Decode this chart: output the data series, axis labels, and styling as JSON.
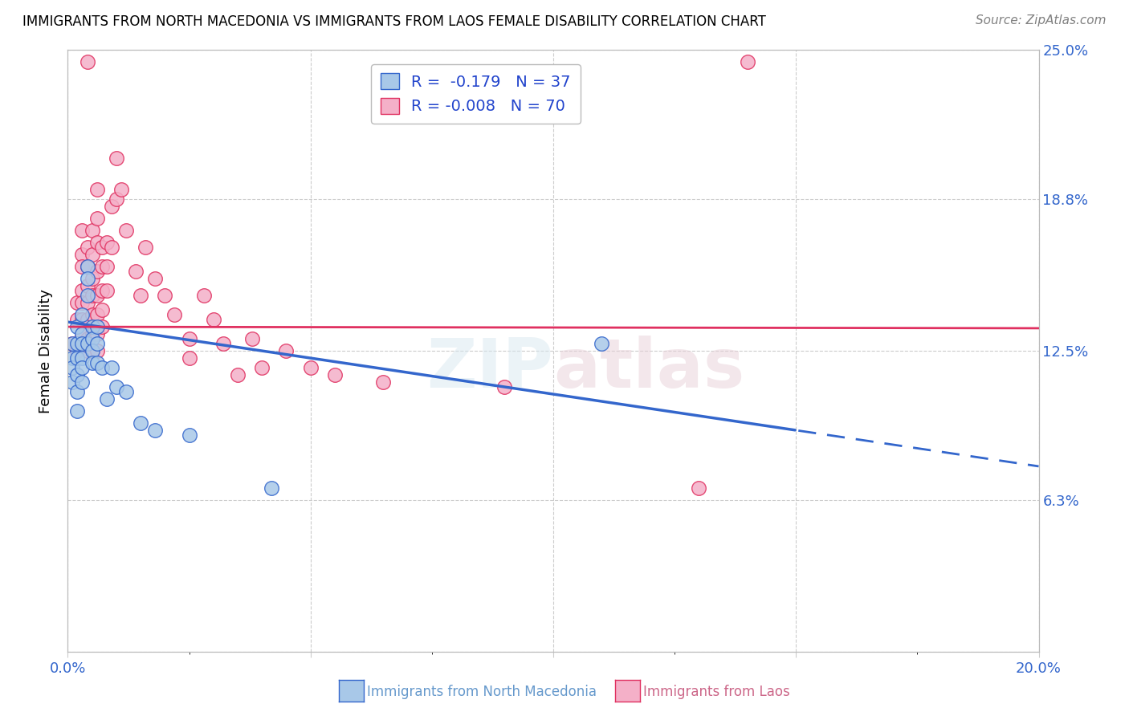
{
  "title": "IMMIGRANTS FROM NORTH MACEDONIA VS IMMIGRANTS FROM LAOS FEMALE DISABILITY CORRELATION CHART",
  "source": "Source: ZipAtlas.com",
  "ylabel": "Female Disability",
  "x_min": 0.0,
  "x_max": 0.2,
  "y_min": 0.0,
  "y_max": 0.25,
  "y_ticks": [
    0.0,
    0.063,
    0.125,
    0.188,
    0.25
  ],
  "y_tick_labels": [
    "",
    "6.3%",
    "12.5%",
    "18.8%",
    "25.0%"
  ],
  "legend_blue_r": "-0.179",
  "legend_blue_n": "37",
  "legend_pink_r": "-0.008",
  "legend_pink_n": "70",
  "blue_color": "#a8c8e8",
  "pink_color": "#f4b0c8",
  "blue_line_color": "#3366cc",
  "pink_line_color": "#e03060",
  "blue_scatter": [
    [
      0.001,
      0.128
    ],
    [
      0.001,
      0.122
    ],
    [
      0.001,
      0.118
    ],
    [
      0.001,
      0.112
    ],
    [
      0.002,
      0.135
    ],
    [
      0.002,
      0.128
    ],
    [
      0.002,
      0.122
    ],
    [
      0.002,
      0.115
    ],
    [
      0.002,
      0.108
    ],
    [
      0.002,
      0.1
    ],
    [
      0.003,
      0.14
    ],
    [
      0.003,
      0.132
    ],
    [
      0.003,
      0.128
    ],
    [
      0.003,
      0.122
    ],
    [
      0.003,
      0.118
    ],
    [
      0.003,
      0.112
    ],
    [
      0.004,
      0.16
    ],
    [
      0.004,
      0.155
    ],
    [
      0.004,
      0.148
    ],
    [
      0.004,
      0.128
    ],
    [
      0.005,
      0.135
    ],
    [
      0.005,
      0.13
    ],
    [
      0.005,
      0.125
    ],
    [
      0.005,
      0.12
    ],
    [
      0.006,
      0.135
    ],
    [
      0.006,
      0.128
    ],
    [
      0.006,
      0.12
    ],
    [
      0.007,
      0.118
    ],
    [
      0.008,
      0.105
    ],
    [
      0.009,
      0.118
    ],
    [
      0.01,
      0.11
    ],
    [
      0.012,
      0.108
    ],
    [
      0.015,
      0.095
    ],
    [
      0.018,
      0.092
    ],
    [
      0.025,
      0.09
    ],
    [
      0.11,
      0.128
    ],
    [
      0.042,
      0.068
    ]
  ],
  "pink_scatter": [
    [
      0.001,
      0.128
    ],
    [
      0.002,
      0.145
    ],
    [
      0.002,
      0.138
    ],
    [
      0.002,
      0.125
    ],
    [
      0.003,
      0.175
    ],
    [
      0.003,
      0.165
    ],
    [
      0.003,
      0.16
    ],
    [
      0.003,
      0.15
    ],
    [
      0.003,
      0.145
    ],
    [
      0.003,
      0.138
    ],
    [
      0.003,
      0.132
    ],
    [
      0.003,
      0.128
    ],
    [
      0.004,
      0.168
    ],
    [
      0.004,
      0.16
    ],
    [
      0.004,
      0.152
    ],
    [
      0.004,
      0.145
    ],
    [
      0.004,
      0.138
    ],
    [
      0.004,
      0.13
    ],
    [
      0.004,
      0.125
    ],
    [
      0.005,
      0.175
    ],
    [
      0.005,
      0.165
    ],
    [
      0.005,
      0.155
    ],
    [
      0.005,
      0.148
    ],
    [
      0.005,
      0.14
    ],
    [
      0.005,
      0.132
    ],
    [
      0.005,
      0.125
    ],
    [
      0.006,
      0.192
    ],
    [
      0.006,
      0.18
    ],
    [
      0.006,
      0.17
    ],
    [
      0.006,
      0.158
    ],
    [
      0.006,
      0.148
    ],
    [
      0.006,
      0.14
    ],
    [
      0.006,
      0.132
    ],
    [
      0.006,
      0.125
    ],
    [
      0.007,
      0.168
    ],
    [
      0.007,
      0.16
    ],
    [
      0.007,
      0.15
    ],
    [
      0.007,
      0.142
    ],
    [
      0.007,
      0.135
    ],
    [
      0.008,
      0.17
    ],
    [
      0.008,
      0.16
    ],
    [
      0.008,
      0.15
    ],
    [
      0.009,
      0.185
    ],
    [
      0.009,
      0.168
    ],
    [
      0.01,
      0.205
    ],
    [
      0.01,
      0.188
    ],
    [
      0.011,
      0.192
    ],
    [
      0.012,
      0.175
    ],
    [
      0.014,
      0.158
    ],
    [
      0.015,
      0.148
    ],
    [
      0.016,
      0.168
    ],
    [
      0.018,
      0.155
    ],
    [
      0.02,
      0.148
    ],
    [
      0.022,
      0.14
    ],
    [
      0.025,
      0.13
    ],
    [
      0.025,
      0.122
    ],
    [
      0.028,
      0.148
    ],
    [
      0.03,
      0.138
    ],
    [
      0.032,
      0.128
    ],
    [
      0.035,
      0.115
    ],
    [
      0.038,
      0.13
    ],
    [
      0.04,
      0.118
    ],
    [
      0.045,
      0.125
    ],
    [
      0.05,
      0.118
    ],
    [
      0.055,
      0.115
    ],
    [
      0.065,
      0.112
    ],
    [
      0.09,
      0.11
    ],
    [
      0.004,
      0.245
    ],
    [
      0.14,
      0.245
    ],
    [
      0.13,
      0.068
    ]
  ],
  "figsize": [
    14.06,
    8.92
  ],
  "dpi": 100
}
